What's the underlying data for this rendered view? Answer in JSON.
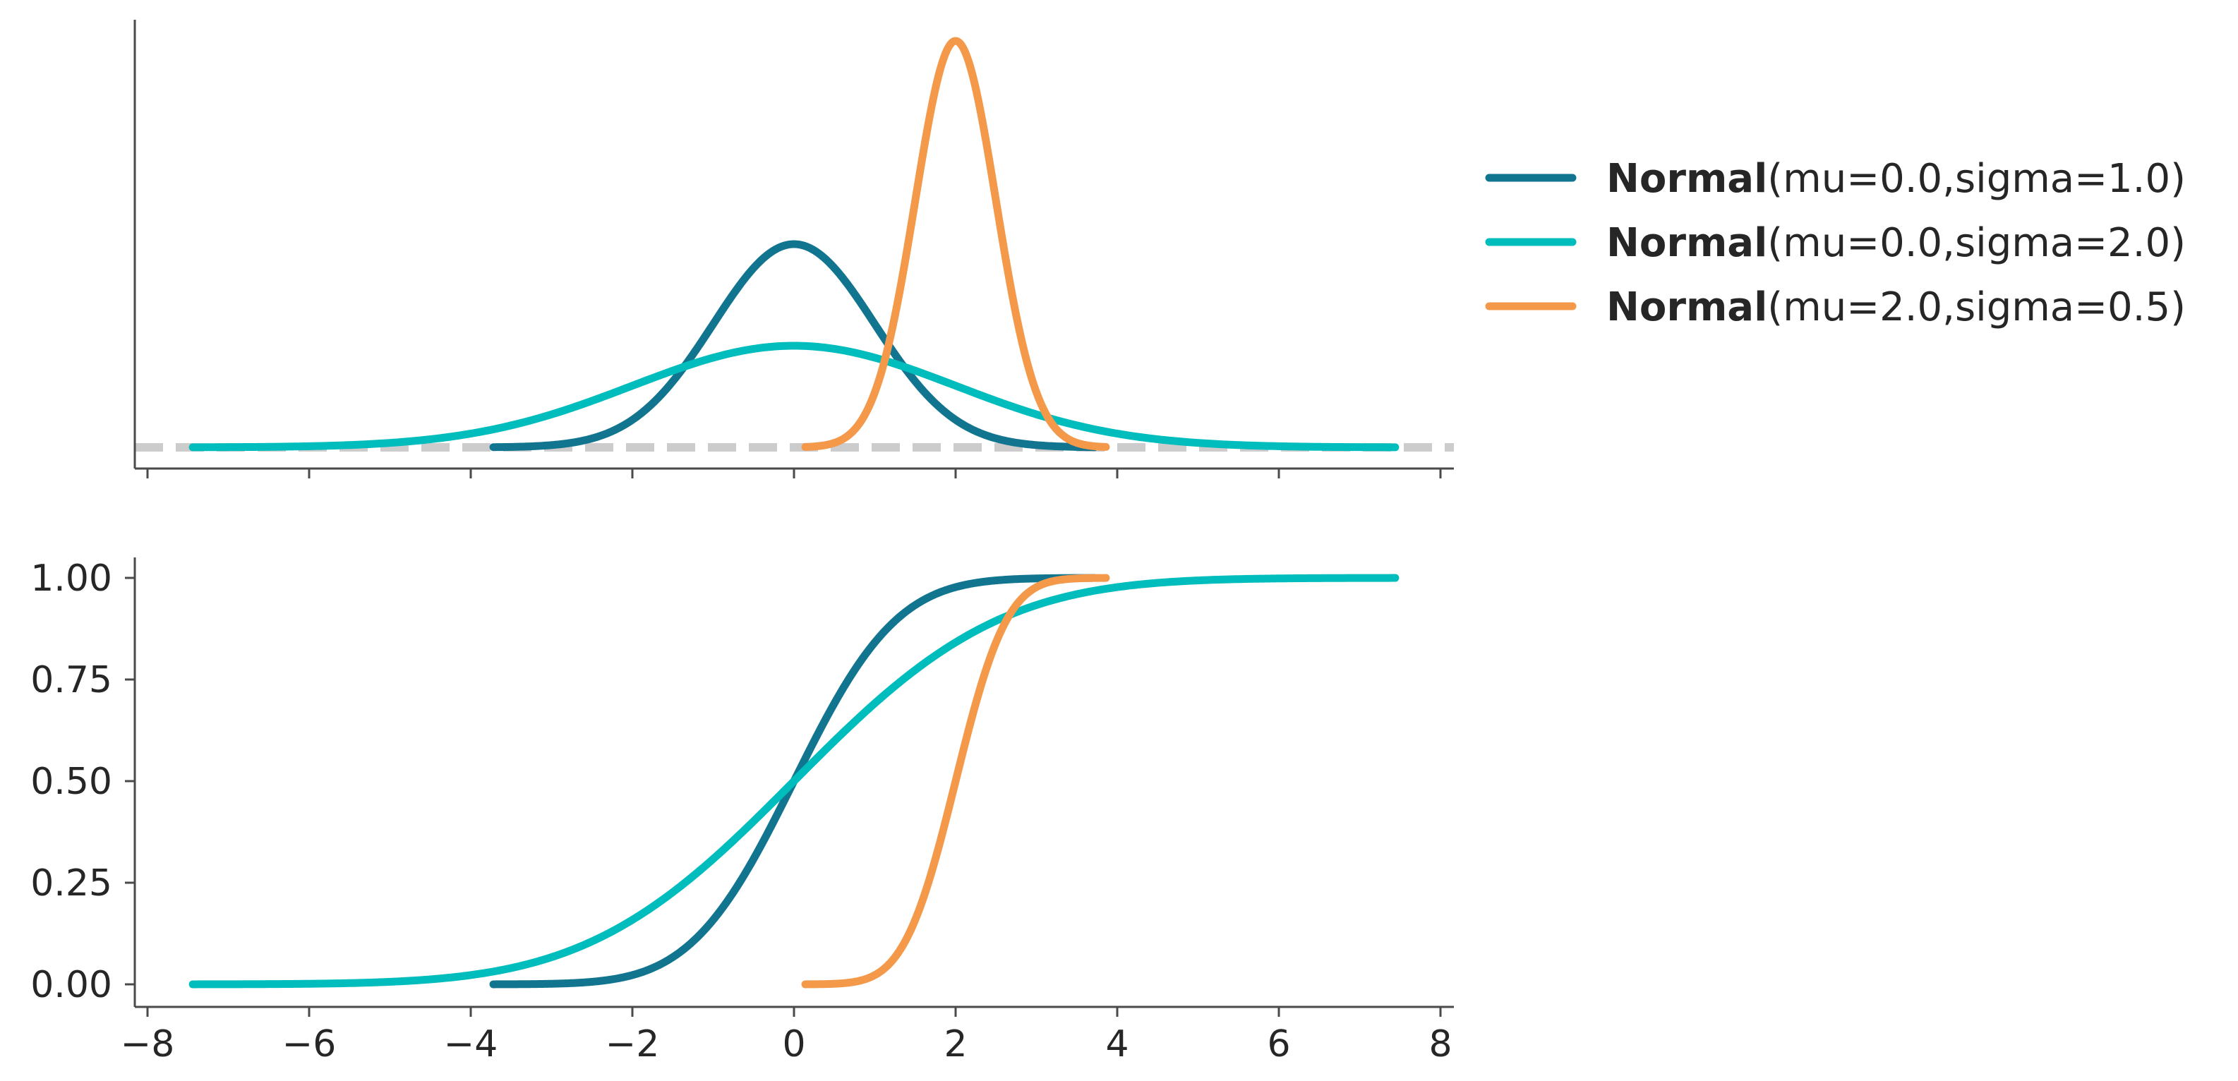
{
  "chart_data": [
    {
      "type": "line",
      "panel": "pdf",
      "xlim": [
        -8.2,
        8.2
      ],
      "ylim": [
        -0.03,
        0.82
      ],
      "y_ticks_shown": false,
      "x_tick_labels_shown": false,
      "x_ticks": [
        -8,
        -6,
        -4,
        -2,
        0,
        2,
        4,
        6,
        8
      ],
      "reference_line": {
        "y": 0,
        "style": "dashed",
        "color": "#cccccc"
      },
      "series": [
        {
          "distribution": "Normal",
          "mu": 0.0,
          "sigma": 1.0,
          "x_range": [
            -3.72,
            3.72
          ],
          "color": "#12758f"
        },
        {
          "distribution": "Normal",
          "mu": 0.0,
          "sigma": 2.0,
          "x_range": [
            -7.44,
            7.44
          ],
          "color": "#00bdbd"
        },
        {
          "distribution": "Normal",
          "mu": 2.0,
          "sigma": 0.5,
          "x_range": [
            0.14,
            3.86
          ],
          "color": "#f4984a"
        }
      ]
    },
    {
      "type": "line",
      "panel": "cdf",
      "xlim": [
        -8.2,
        8.2
      ],
      "ylim": [
        -0.05,
        1.05
      ],
      "y_ticks": [
        0.0,
        0.25,
        0.5,
        0.75,
        1.0
      ],
      "y_tick_labels": [
        "0.00",
        "0.25",
        "0.50",
        "0.75",
        "1.00"
      ],
      "x_ticks": [
        -8,
        -6,
        -4,
        -2,
        0,
        2,
        4,
        6,
        8
      ],
      "x_tick_labels": [
        "−8",
        "−6",
        "−4",
        "−2",
        "0",
        "2",
        "4",
        "6",
        "8"
      ],
      "series": [
        {
          "distribution": "Normal",
          "mu": 0.0,
          "sigma": 1.0,
          "x_range": [
            -3.72,
            3.72
          ],
          "color": "#12758f"
        },
        {
          "distribution": "Normal",
          "mu": 0.0,
          "sigma": 2.0,
          "x_range": [
            -7.44,
            7.44
          ],
          "color": "#00bdbd"
        },
        {
          "distribution": "Normal",
          "mu": 2.0,
          "sigma": 0.5,
          "x_range": [
            0.14,
            3.86
          ],
          "color": "#f4984a"
        }
      ]
    }
  ],
  "legend": {
    "placement": "right",
    "entries": [
      {
        "bold": "Normal",
        "params": "(mu=0.0,sigma=1.0)",
        "color": "#12758f"
      },
      {
        "bold": "Normal",
        "params": "(mu=0.0,sigma=2.0)",
        "color": "#00bdbd"
      },
      {
        "bold": "Normal",
        "params": "(mu=2.0,sigma=0.5)",
        "color": "#f4984a"
      }
    ]
  }
}
